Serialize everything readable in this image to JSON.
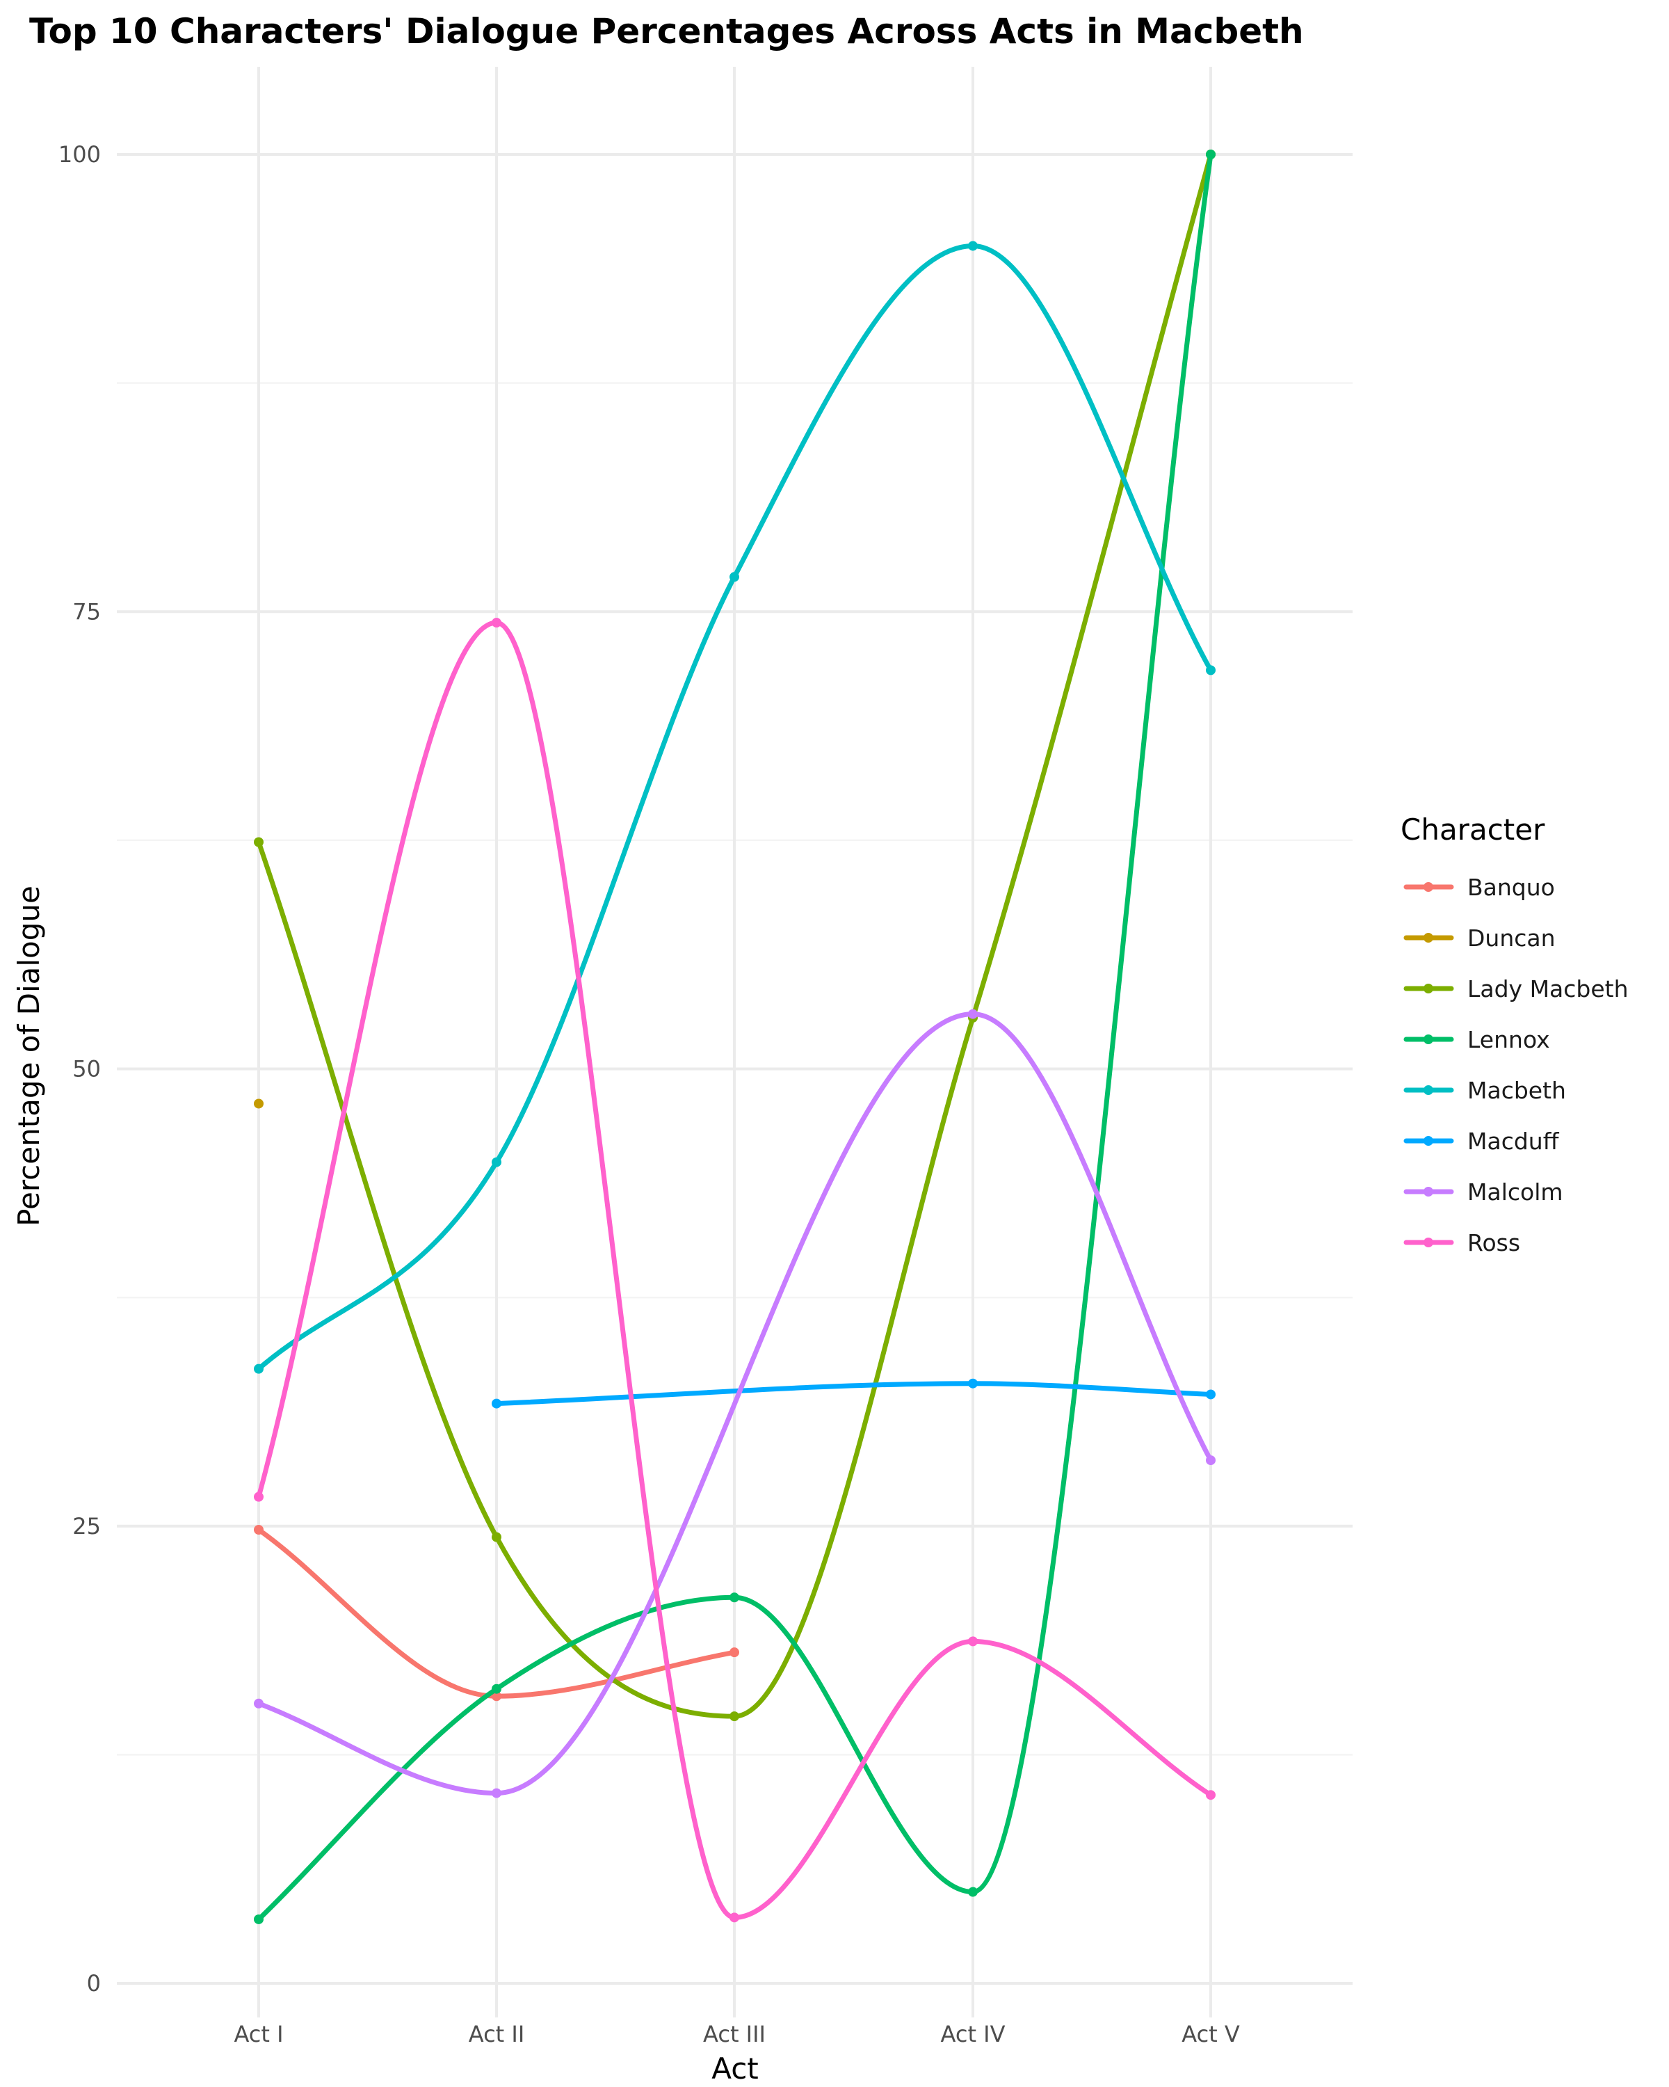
{
  "chart_data": {
    "type": "line",
    "title": "Top 10 Characters' Dialogue Percentages Across Acts in Macbeth",
    "xlabel": "Act",
    "ylabel": "Percentage of Dialogue",
    "categories": [
      "Act I",
      "Act II",
      "Act III",
      "Act IV",
      "Act V"
    ],
    "ylim": [
      0,
      100
    ],
    "yticks": [
      0,
      25,
      50,
      75,
      100
    ],
    "grid": true,
    "smooth": true,
    "legend": {
      "title": "Character",
      "position": "right"
    },
    "series": [
      {
        "name": "Banquo",
        "color": "#F8766D",
        "values": [
          24.8,
          15.7,
          18.1,
          null,
          null
        ]
      },
      {
        "name": "Duncan",
        "color": "#C49A00",
        "values": [
          48.1,
          null,
          null,
          null,
          null
        ]
      },
      {
        "name": "Lady Macbeth",
        "color": "#7CAE00",
        "values": [
          62.4,
          24.4,
          14.6,
          52.8,
          100
        ]
      },
      {
        "name": "Lennox",
        "color": "#00BE67",
        "values": [
          3.5,
          16.1,
          21.1,
          5.0,
          100
        ]
      },
      {
        "name": "Macbeth",
        "color": "#00BFC4",
        "values": [
          33.6,
          44.9,
          76.9,
          95.0,
          71.8
        ]
      },
      {
        "name": "Macduff",
        "color": "#00A9FF",
        "values": [
          null,
          31.7,
          null,
          32.8,
          32.2
        ]
      },
      {
        "name": "Malcolm",
        "color": "#C77CFF",
        "values": [
          15.3,
          10.4,
          null,
          53.0,
          28.6
        ]
      },
      {
        "name": "Ross",
        "color": "#FF61CC",
        "values": [
          26.6,
          74.4,
          3.6,
          18.7,
          10.3
        ]
      }
    ]
  }
}
